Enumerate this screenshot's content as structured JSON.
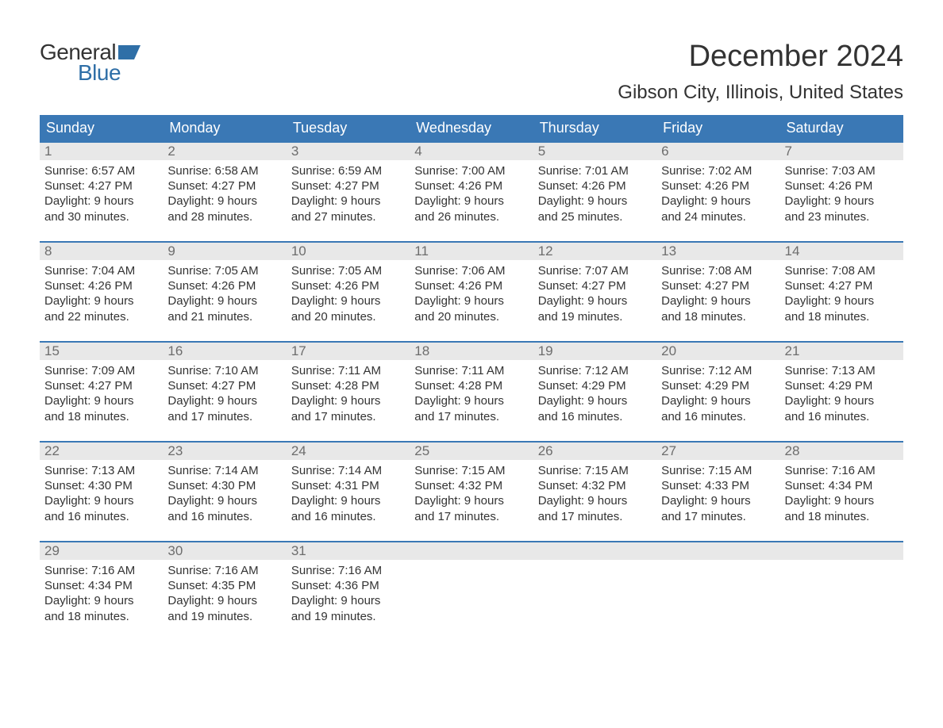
{
  "colors": {
    "header_blue": "#3a78b5",
    "logo_blue": "#2f6fa7",
    "day_num_bg": "#e8e8e8",
    "day_num_fg": "#6d6d6d",
    "text": "#333333",
    "background": "#ffffff"
  },
  "typography": {
    "month_title_pt": 38,
    "location_pt": 24,
    "weekday_pt": 18,
    "body_pt": 15,
    "logo_pt": 28,
    "font_family": "Arial"
  },
  "logo": {
    "line1": "General",
    "line2": "Blue"
  },
  "title": "December 2024",
  "location": "Gibson City, Illinois, United States",
  "weekdays": [
    "Sunday",
    "Monday",
    "Tuesday",
    "Wednesday",
    "Thursday",
    "Friday",
    "Saturday"
  ],
  "layout": {
    "columns": 7,
    "rows": 5
  },
  "days": [
    {
      "n": 1,
      "sunrise": "Sunrise: 6:57 AM",
      "sunset": "Sunset: 4:27 PM",
      "dl1": "Daylight: 9 hours",
      "dl2": "and 30 minutes."
    },
    {
      "n": 2,
      "sunrise": "Sunrise: 6:58 AM",
      "sunset": "Sunset: 4:27 PM",
      "dl1": "Daylight: 9 hours",
      "dl2": "and 28 minutes."
    },
    {
      "n": 3,
      "sunrise": "Sunrise: 6:59 AM",
      "sunset": "Sunset: 4:27 PM",
      "dl1": "Daylight: 9 hours",
      "dl2": "and 27 minutes."
    },
    {
      "n": 4,
      "sunrise": "Sunrise: 7:00 AM",
      "sunset": "Sunset: 4:26 PM",
      "dl1": "Daylight: 9 hours",
      "dl2": "and 26 minutes."
    },
    {
      "n": 5,
      "sunrise": "Sunrise: 7:01 AM",
      "sunset": "Sunset: 4:26 PM",
      "dl1": "Daylight: 9 hours",
      "dl2": "and 25 minutes."
    },
    {
      "n": 6,
      "sunrise": "Sunrise: 7:02 AM",
      "sunset": "Sunset: 4:26 PM",
      "dl1": "Daylight: 9 hours",
      "dl2": "and 24 minutes."
    },
    {
      "n": 7,
      "sunrise": "Sunrise: 7:03 AM",
      "sunset": "Sunset: 4:26 PM",
      "dl1": "Daylight: 9 hours",
      "dl2": "and 23 minutes."
    },
    {
      "n": 8,
      "sunrise": "Sunrise: 7:04 AM",
      "sunset": "Sunset: 4:26 PM",
      "dl1": "Daylight: 9 hours",
      "dl2": "and 22 minutes."
    },
    {
      "n": 9,
      "sunrise": "Sunrise: 7:05 AM",
      "sunset": "Sunset: 4:26 PM",
      "dl1": "Daylight: 9 hours",
      "dl2": "and 21 minutes."
    },
    {
      "n": 10,
      "sunrise": "Sunrise: 7:05 AM",
      "sunset": "Sunset: 4:26 PM",
      "dl1": "Daylight: 9 hours",
      "dl2": "and 20 minutes."
    },
    {
      "n": 11,
      "sunrise": "Sunrise: 7:06 AM",
      "sunset": "Sunset: 4:26 PM",
      "dl1": "Daylight: 9 hours",
      "dl2": "and 20 minutes."
    },
    {
      "n": 12,
      "sunrise": "Sunrise: 7:07 AM",
      "sunset": "Sunset: 4:27 PM",
      "dl1": "Daylight: 9 hours",
      "dl2": "and 19 minutes."
    },
    {
      "n": 13,
      "sunrise": "Sunrise: 7:08 AM",
      "sunset": "Sunset: 4:27 PM",
      "dl1": "Daylight: 9 hours",
      "dl2": "and 18 minutes."
    },
    {
      "n": 14,
      "sunrise": "Sunrise: 7:08 AM",
      "sunset": "Sunset: 4:27 PM",
      "dl1": "Daylight: 9 hours",
      "dl2": "and 18 minutes."
    },
    {
      "n": 15,
      "sunrise": "Sunrise: 7:09 AM",
      "sunset": "Sunset: 4:27 PM",
      "dl1": "Daylight: 9 hours",
      "dl2": "and 18 minutes."
    },
    {
      "n": 16,
      "sunrise": "Sunrise: 7:10 AM",
      "sunset": "Sunset: 4:27 PM",
      "dl1": "Daylight: 9 hours",
      "dl2": "and 17 minutes."
    },
    {
      "n": 17,
      "sunrise": "Sunrise: 7:11 AM",
      "sunset": "Sunset: 4:28 PM",
      "dl1": "Daylight: 9 hours",
      "dl2": "and 17 minutes."
    },
    {
      "n": 18,
      "sunrise": "Sunrise: 7:11 AM",
      "sunset": "Sunset: 4:28 PM",
      "dl1": "Daylight: 9 hours",
      "dl2": "and 17 minutes."
    },
    {
      "n": 19,
      "sunrise": "Sunrise: 7:12 AM",
      "sunset": "Sunset: 4:29 PM",
      "dl1": "Daylight: 9 hours",
      "dl2": "and 16 minutes."
    },
    {
      "n": 20,
      "sunrise": "Sunrise: 7:12 AM",
      "sunset": "Sunset: 4:29 PM",
      "dl1": "Daylight: 9 hours",
      "dl2": "and 16 minutes."
    },
    {
      "n": 21,
      "sunrise": "Sunrise: 7:13 AM",
      "sunset": "Sunset: 4:29 PM",
      "dl1": "Daylight: 9 hours",
      "dl2": "and 16 minutes."
    },
    {
      "n": 22,
      "sunrise": "Sunrise: 7:13 AM",
      "sunset": "Sunset: 4:30 PM",
      "dl1": "Daylight: 9 hours",
      "dl2": "and 16 minutes."
    },
    {
      "n": 23,
      "sunrise": "Sunrise: 7:14 AM",
      "sunset": "Sunset: 4:30 PM",
      "dl1": "Daylight: 9 hours",
      "dl2": "and 16 minutes."
    },
    {
      "n": 24,
      "sunrise": "Sunrise: 7:14 AM",
      "sunset": "Sunset: 4:31 PM",
      "dl1": "Daylight: 9 hours",
      "dl2": "and 16 minutes."
    },
    {
      "n": 25,
      "sunrise": "Sunrise: 7:15 AM",
      "sunset": "Sunset: 4:32 PM",
      "dl1": "Daylight: 9 hours",
      "dl2": "and 17 minutes."
    },
    {
      "n": 26,
      "sunrise": "Sunrise: 7:15 AM",
      "sunset": "Sunset: 4:32 PM",
      "dl1": "Daylight: 9 hours",
      "dl2": "and 17 minutes."
    },
    {
      "n": 27,
      "sunrise": "Sunrise: 7:15 AM",
      "sunset": "Sunset: 4:33 PM",
      "dl1": "Daylight: 9 hours",
      "dl2": "and 17 minutes."
    },
    {
      "n": 28,
      "sunrise": "Sunrise: 7:16 AM",
      "sunset": "Sunset: 4:34 PM",
      "dl1": "Daylight: 9 hours",
      "dl2": "and 18 minutes."
    },
    {
      "n": 29,
      "sunrise": "Sunrise: 7:16 AM",
      "sunset": "Sunset: 4:34 PM",
      "dl1": "Daylight: 9 hours",
      "dl2": "and 18 minutes."
    },
    {
      "n": 30,
      "sunrise": "Sunrise: 7:16 AM",
      "sunset": "Sunset: 4:35 PM",
      "dl1": "Daylight: 9 hours",
      "dl2": "and 19 minutes."
    },
    {
      "n": 31,
      "sunrise": "Sunrise: 7:16 AM",
      "sunset": "Sunset: 4:36 PM",
      "dl1": "Daylight: 9 hours",
      "dl2": "and 19 minutes."
    }
  ]
}
